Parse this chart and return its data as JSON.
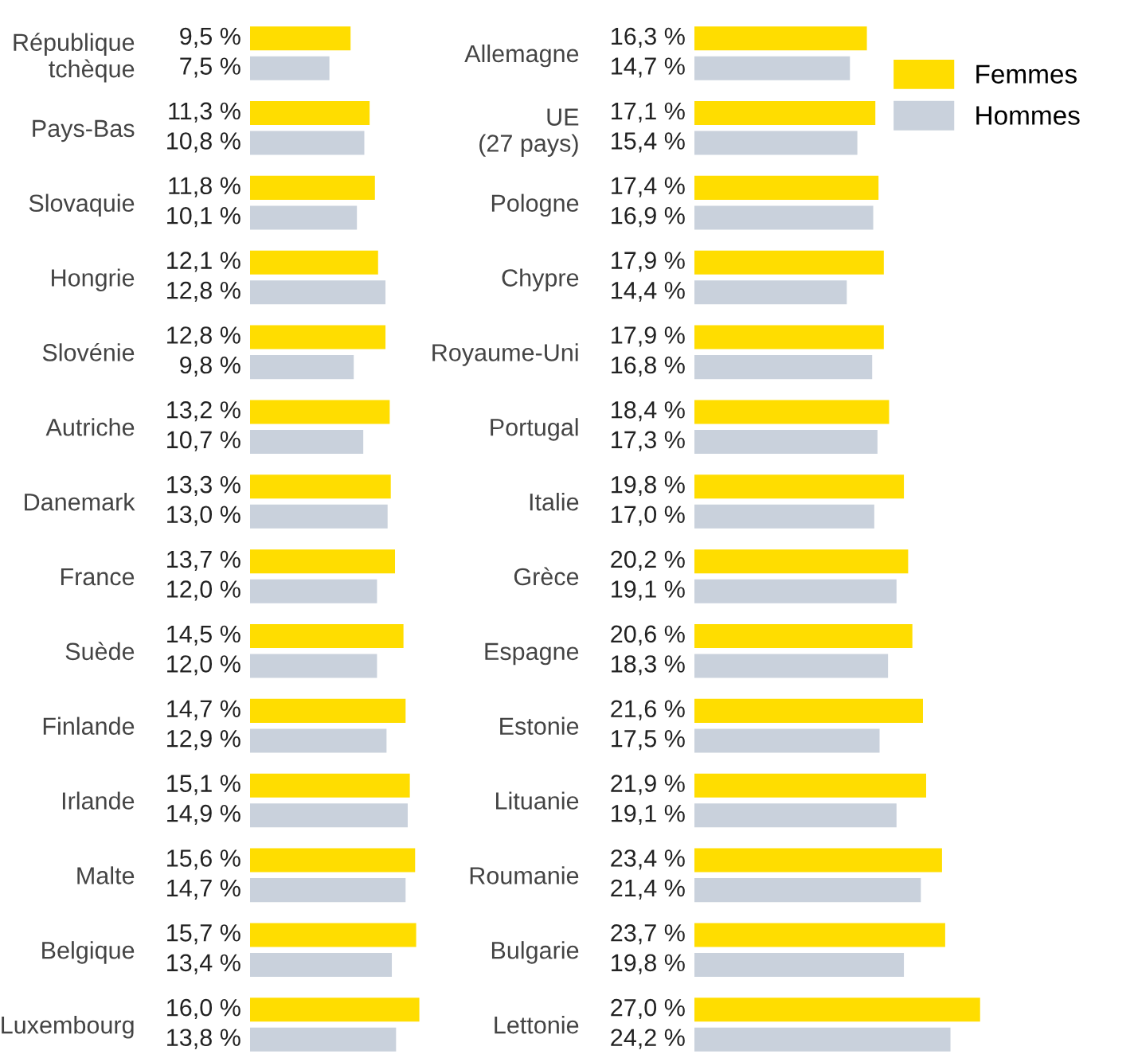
{
  "chart_data": [
    {
      "type": "bar",
      "orientation": "horizontal",
      "legend": false,
      "grid": false,
      "tick_labels": "y",
      "categories": [
        "République\ntchèque",
        "Pays-Bas",
        "Slovaquie",
        "Hongrie",
        "Slovénie",
        "Autriche",
        "Danemark",
        "France",
        "Suède",
        "Finlande",
        "Irlande",
        "Malte",
        "Belgique",
        "Luxembourg"
      ],
      "series": [
        {
          "color": "#ffdd00",
          "values": [
            9.5,
            11.3,
            11.8,
            12.1,
            12.8,
            13.2,
            13.3,
            13.7,
            14.5,
            14.7,
            15.1,
            15.6,
            15.7,
            16.0
          ],
          "value_labels": [
            "9,5 %",
            "11,3 %",
            "11,8 %",
            "12,1 %",
            "12,8 %",
            "13,2 %",
            "13,3 %",
            "13,7 %",
            "14,5 %",
            "14,7 %",
            "15,1 %",
            "15,6 %",
            "15,7 %",
            "16,0 %"
          ]
        },
        {
          "color": "#c9d1dc",
          "values": [
            7.5,
            10.8,
            10.1,
            12.8,
            9.8,
            10.7,
            13.0,
            12.0,
            12.0,
            12.9,
            14.9,
            14.7,
            13.4,
            13.8
          ],
          "value_labels": [
            "7,5 %",
            "10,8 %",
            "10,1 %",
            "12,8 %",
            "9,8 %",
            "10,7 %",
            "13,0 %",
            "12,0 %",
            "12,0 %",
            "12,9 %",
            "14,9 %",
            "14,7 %",
            "13,4 %",
            "13,8 %"
          ]
        }
      ]
    },
    {
      "type": "bar",
      "orientation": "horizontal",
      "legend": "top right",
      "grid": false,
      "tick_labels": "y",
      "categories": [
        "Allemagne",
        "UE\n(27 pays)",
        "Pologne",
        "Chypre",
        "Royaume-Uni",
        "Portugal",
        "Italie",
        "Grèce",
        "Espagne",
        "Estonie",
        "Lituanie",
        "Roumanie",
        "Bulgarie",
        "Lettonie"
      ],
      "series": [
        {
          "name": "Femmes",
          "color": "#ffdd00",
          "values": [
            16.3,
            17.1,
            17.4,
            17.9,
            17.9,
            18.4,
            19.8,
            20.2,
            20.6,
            21.6,
            21.9,
            23.4,
            23.7,
            27.0
          ],
          "value_labels": [
            "16,3 %",
            "17,1 %",
            "17,4 %",
            "17,9 %",
            "17,9 %",
            "18,4 %",
            "19,8 %",
            "20,2 %",
            "20,6 %",
            "21,6 %",
            "21,9 %",
            "23,4 %",
            "23,7 %",
            "27,0 %"
          ]
        },
        {
          "name": "Hommes",
          "color": "#c9d1dc",
          "values": [
            14.7,
            15.4,
            16.9,
            14.4,
            16.8,
            17.3,
            17.0,
            19.1,
            18.3,
            17.5,
            19.1,
            21.4,
            19.8,
            24.2
          ],
          "value_labels": [
            "14,7 %",
            "15,4 %",
            "16,9 %",
            "14,4 %",
            "16,8 %",
            "17,3 %",
            "17,0 %",
            "19,1 %",
            "18,3 %",
            "17,5 %",
            "19,1 %",
            "21,4 %",
            "19,8 %",
            "24,2 %"
          ]
        }
      ]
    }
  ]
}
